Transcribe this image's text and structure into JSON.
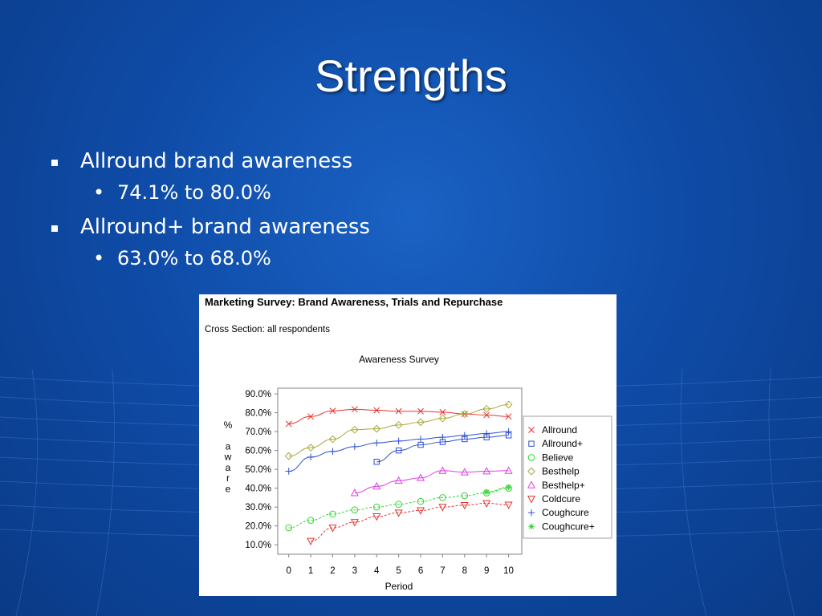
{
  "slide": {
    "title": "Strengths",
    "bullets": [
      {
        "text": "Allround brand awareness",
        "sub": "74.1% to 80.0%"
      },
      {
        "text": "Allround+ brand awareness",
        "sub": "63.0% to 68.0%"
      }
    ],
    "sub_bullet_glyph": "•"
  },
  "panel": {
    "heading": "Marketing Survey: Brand Awareness, Trials and Repurchase",
    "subheading": "Cross Section: all respondents"
  },
  "chart_data": {
    "type": "line",
    "title": "Awareness Survey",
    "xlabel": "Period",
    "ylabel": "% aware",
    "ylim": [
      5,
      93
    ],
    "xlim": [
      -0.5,
      10.6
    ],
    "x_ticks": [
      0,
      1,
      2,
      3,
      4,
      5,
      6,
      7,
      8,
      9,
      10
    ],
    "y_ticks": [
      10,
      20,
      30,
      40,
      50,
      60,
      70,
      80,
      90
    ],
    "y_tick_labels": [
      "10.0%",
      "20.0%",
      "30.0%",
      "40.0%",
      "50.0%",
      "60.0%",
      "70.0%",
      "80.0%",
      "90.0%"
    ],
    "grid": false,
    "legend": "right",
    "series": [
      {
        "name": "Allround",
        "color": "#e8322e",
        "marker": "x",
        "dash": false,
        "x": [
          0,
          1,
          2,
          3,
          4,
          5,
          6,
          7,
          8,
          9,
          10
        ],
        "values": [
          74.1,
          78,
          81,
          81.8,
          81.3,
          80.8,
          80.8,
          80.3,
          79.3,
          78.8,
          78
        ]
      },
      {
        "name": "Allround+",
        "color": "#2d4fd6",
        "marker": "square",
        "dash": false,
        "x": [
          4,
          5,
          6,
          7,
          8,
          9,
          10
        ],
        "values": [
          54,
          60,
          63,
          64.5,
          66,
          67,
          68
        ]
      },
      {
        "name": "Believe",
        "color": "#33d633",
        "marker": "circle",
        "dash": true,
        "x": [
          0,
          1,
          2,
          3,
          4,
          5,
          6,
          7,
          8,
          9,
          10
        ],
        "values": [
          19,
          23,
          26.3,
          28.5,
          30,
          31.5,
          33,
          35,
          36,
          37.5,
          40
        ]
      },
      {
        "name": "Besthelp",
        "color": "#a8a83c",
        "marker": "diamond",
        "dash": false,
        "x": [
          0,
          1,
          2,
          3,
          4,
          5,
          6,
          7,
          8,
          9,
          10
        ],
        "values": [
          57,
          61.5,
          66,
          71,
          71.5,
          73.5,
          75,
          77,
          79.3,
          82,
          84.3
        ]
      },
      {
        "name": "Besthelp+",
        "color": "#e23ce6",
        "marker": "triangle-up",
        "dash": false,
        "x": [
          3,
          4,
          5,
          6,
          7,
          8,
          9,
          10
        ],
        "values": [
          37.5,
          41,
          44,
          45.5,
          49.3,
          48.5,
          49,
          49.3
        ]
      },
      {
        "name": "Coldcure",
        "color": "#e8322e",
        "marker": "triangle-down",
        "dash": true,
        "x": [
          1,
          2,
          3,
          4,
          5,
          6,
          7,
          8,
          9,
          10
        ],
        "values": [
          12,
          19,
          22,
          25,
          27,
          28.2,
          30,
          31,
          32,
          31.2
        ]
      },
      {
        "name": "Coughcure",
        "color": "#2d4fd6",
        "marker": "plus",
        "dash": false,
        "x": [
          0,
          1,
          2,
          3,
          4,
          5,
          6,
          7,
          8,
          9,
          10
        ],
        "values": [
          49,
          56.5,
          59.5,
          62,
          64,
          65,
          66,
          67,
          68,
          69,
          70
        ]
      },
      {
        "name": "Coughcure+",
        "color": "#33d633",
        "marker": "asterisk",
        "dash": true,
        "x": [
          9,
          10
        ],
        "values": [
          38,
          40.5
        ]
      }
    ]
  }
}
